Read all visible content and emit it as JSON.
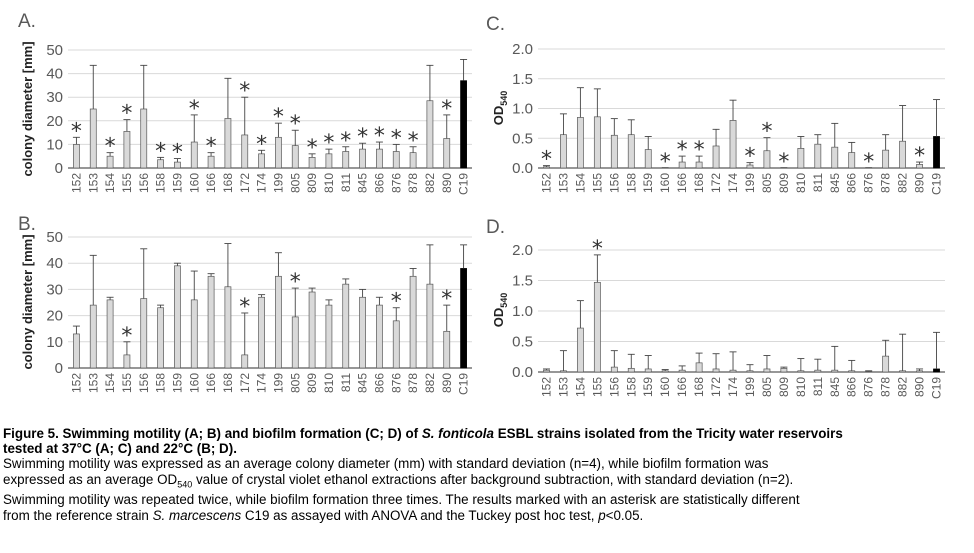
{
  "categories": [
    "152",
    "153",
    "154",
    "155",
    "156",
    "158",
    "159",
    "160",
    "166",
    "168",
    "172",
    "174",
    "199",
    "805",
    "809",
    "810",
    "811",
    "845",
    "866",
    "876",
    "878",
    "882",
    "890",
    "C19"
  ],
  "colors": {
    "bar": "#d9d9d9",
    "reference_bar": "#000000",
    "axis": "#595959",
    "gridline": "#d9d9d9",
    "text": "#595959"
  },
  "chart_data": [
    {
      "panel": "A.",
      "type": "bar",
      "ylabel": "colony diameter [mm]",
      "ylim": [
        0,
        50
      ],
      "yticks": [
        "0",
        "10",
        "20",
        "30",
        "40",
        "50"
      ],
      "categories": [
        "152",
        "153",
        "154",
        "155",
        "156",
        "158",
        "159",
        "160",
        "166",
        "168",
        "172",
        "174",
        "199",
        "805",
        "809",
        "810",
        "811",
        "845",
        "866",
        "876",
        "878",
        "882",
        "890",
        "C19"
      ],
      "values": [
        10,
        25,
        5,
        15.5,
        25,
        3.5,
        2.5,
        11,
        5,
        21,
        14,
        6,
        13,
        9.5,
        4.5,
        6,
        7,
        8,
        8,
        7,
        6.5,
        28.5,
        12.5,
        37
      ],
      "errors": [
        3,
        18.5,
        1.5,
        5,
        18.5,
        1,
        1.5,
        11.5,
        1.5,
        17,
        16,
        1.5,
        6,
        6.5,
        1.5,
        2,
        2,
        2.5,
        3,
        3,
        2.5,
        15,
        10,
        9
      ],
      "significant": [
        true,
        false,
        true,
        true,
        false,
        true,
        true,
        true,
        true,
        false,
        true,
        true,
        true,
        true,
        true,
        true,
        true,
        true,
        true,
        true,
        true,
        false,
        true,
        false
      ],
      "grid": true
    },
    {
      "panel": "B.",
      "type": "bar",
      "ylabel": "colony diameter [mm]",
      "ylim": [
        0,
        50
      ],
      "yticks": [
        "0",
        "10",
        "20",
        "30",
        "40",
        "50"
      ],
      "categories": [
        "152",
        "153",
        "154",
        "155",
        "156",
        "158",
        "159",
        "160",
        "166",
        "168",
        "172",
        "174",
        "199",
        "805",
        "809",
        "810",
        "811",
        "845",
        "866",
        "876",
        "878",
        "882",
        "890",
        "C19"
      ],
      "values": [
        13,
        24,
        26,
        5,
        26.5,
        23,
        39,
        26,
        35,
        31,
        5,
        27,
        35,
        19.5,
        29,
        24,
        32,
        27,
        24,
        18,
        35,
        32,
        14,
        38
      ],
      "errors": [
        3,
        19,
        1,
        5,
        19,
        1,
        1,
        11,
        1,
        16.5,
        16,
        1,
        9,
        11,
        1.5,
        2,
        2,
        3,
        3,
        5,
        3,
        15,
        10,
        9
      ],
      "significant": [
        false,
        false,
        false,
        true,
        false,
        false,
        false,
        false,
        false,
        false,
        true,
        false,
        false,
        true,
        false,
        false,
        false,
        false,
        false,
        true,
        false,
        false,
        true,
        false
      ],
      "grid": true
    },
    {
      "panel": "C.",
      "type": "bar",
      "ylabel": "OD540",
      "ylim": [
        0,
        2.0
      ],
      "yticks": [
        "0.0",
        "0.5",
        "1.0",
        "1.5",
        "2.0"
      ],
      "categories": [
        "152",
        "153",
        "154",
        "155",
        "156",
        "158",
        "159",
        "160",
        "166",
        "168",
        "172",
        "174",
        "199",
        "805",
        "809",
        "810",
        "811",
        "845",
        "866",
        "876",
        "878",
        "882",
        "890",
        "C19"
      ],
      "values": [
        0.02,
        0.56,
        0.85,
        0.86,
        0.55,
        0.56,
        0.31,
        0.0,
        0.1,
        0.1,
        0.37,
        0.8,
        0.05,
        0.29,
        0.0,
        0.33,
        0.4,
        0.35,
        0.26,
        0.0,
        0.3,
        0.45,
        0.06,
        0.53
      ],
      "errors": [
        0.02,
        0.35,
        0.5,
        0.47,
        0.28,
        0.25,
        0.22,
        0.0,
        0.1,
        0.1,
        0.28,
        0.34,
        0.04,
        0.22,
        0.0,
        0.2,
        0.16,
        0.4,
        0.17,
        0.0,
        0.26,
        0.6,
        0.04,
        0.62
      ],
      "significant": [
        true,
        false,
        false,
        false,
        false,
        false,
        false,
        true,
        true,
        true,
        false,
        false,
        true,
        true,
        true,
        false,
        false,
        false,
        false,
        true,
        false,
        false,
        true,
        false
      ],
      "grid": true
    },
    {
      "panel": "D.",
      "type": "bar",
      "ylabel": "OD540",
      "ylim": [
        0,
        2.0
      ],
      "yticks": [
        "0.0",
        "0.5",
        "1.0",
        "1.5",
        "2.0"
      ],
      "categories": [
        "152",
        "153",
        "154",
        "155",
        "156",
        "158",
        "159",
        "160",
        "166",
        "168",
        "172",
        "174",
        "199",
        "805",
        "809",
        "810",
        "811",
        "845",
        "866",
        "876",
        "878",
        "882",
        "890",
        "C19"
      ],
      "values": [
        0.03,
        0.02,
        0.72,
        1.47,
        0.08,
        0.06,
        0.05,
        0.02,
        0.03,
        0.15,
        0.05,
        0.03,
        0.02,
        0.05,
        0.06,
        0.02,
        0.03,
        0.03,
        0.02,
        0.01,
        0.26,
        0.02,
        0.02,
        0.05
      ],
      "errors": [
        0.02,
        0.33,
        0.45,
        0.45,
        0.27,
        0.23,
        0.22,
        0.02,
        0.07,
        0.16,
        0.25,
        0.3,
        0.1,
        0.22,
        0.02,
        0.2,
        0.18,
        0.39,
        0.17,
        0.01,
        0.26,
        0.6,
        0.03,
        0.6
      ],
      "significant": [
        false,
        false,
        false,
        true,
        false,
        false,
        false,
        false,
        false,
        false,
        false,
        false,
        false,
        false,
        false,
        false,
        false,
        false,
        false,
        false,
        false,
        false,
        false,
        false
      ],
      "grid": true
    }
  ],
  "caption": {
    "bold_1": "Figure 5. Swimming motility (A; B) and biofilm formation (C; D) of ",
    "bold_italic_1": "S. fonticola",
    "bold_2": " ESBL strains isolated from the Tricity water reservoirs",
    "bold_3": "tested at 37°C (A; C) and 22°C (B; D).",
    "line_3": "Swimming motility was expressed as an average colony diameter (mm) with standard deviation (n=4), while biofilm formation was",
    "line_4a": "expressed as an average OD",
    "line_4_sub": "540",
    "line_4b": " value of crystal violet ethanol extractions after background subtraction, with standard deviation (n=2).",
    "line_5": "Swimming motility was repeated twice, while biofilm formation three times. The results marked with an asterisk are statistically different",
    "line_6a": "from the reference strain ",
    "line_6_italic": "S. marcescens",
    "line_6b": " C19 as assayed with ANOVA and the Tuckey post hoc test, ",
    "line_6_p": "p",
    "line_6c": "<0.05."
  }
}
